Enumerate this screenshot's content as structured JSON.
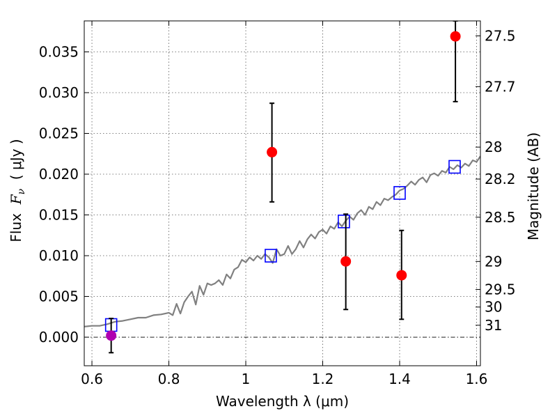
{
  "chart_data": {
    "type": "scatter",
    "xlabel": "Wavelength  λ (μm)",
    "ylabel": "Flux  F_ν  ( μJy )",
    "ylabel_parts": {
      "prefix": "Flux  ",
      "symbol": "F",
      "sub": "ν",
      "suffix": "  ( μJy )"
    },
    "y2label": "Magnitude (AB)",
    "xlim": [
      0.58,
      1.61
    ],
    "ylim": [
      -0.0035,
      0.0388
    ],
    "xticks": [
      0.6,
      0.8,
      1.0,
      1.2,
      1.4,
      1.6
    ],
    "xtick_labels": [
      "0.6",
      "0.8",
      "1",
      "1.2",
      "1.4",
      "1.6"
    ],
    "yticks": [
      0.0,
      0.005,
      0.01,
      0.015,
      0.02,
      0.025,
      0.03,
      0.035
    ],
    "ytick_labels": [
      "0.000",
      "0.005",
      "0.010",
      "0.015",
      "0.020",
      "0.025",
      "0.030",
      "0.035"
    ],
    "y2ticks": [
      {
        "label": "27.5",
        "flux": 0.03696
      },
      {
        "label": "27.7",
        "flux": 0.03074
      },
      {
        "label": "28",
        "flux": 0.02332
      },
      {
        "label": "28.2",
        "flux": 0.0194
      },
      {
        "label": "28.5",
        "flux": 0.01472
      },
      {
        "label": "29",
        "flux": 0.00929
      },
      {
        "label": "29.5",
        "flux": 0.00586
      },
      {
        "label": "30",
        "flux": 0.0037
      },
      {
        "label": "31",
        "flux": 0.00147
      }
    ],
    "grid": true,
    "zero_line": true,
    "series": [
      {
        "type": "line",
        "color": "#808080",
        "x": [
          0.58,
          0.6,
          0.62,
          0.64,
          0.66,
          0.68,
          0.7,
          0.72,
          0.74,
          0.76,
          0.78,
          0.8,
          0.81,
          0.82,
          0.83,
          0.84,
          0.85,
          0.86,
          0.87,
          0.88,
          0.89,
          0.9,
          0.91,
          0.92,
          0.93,
          0.94,
          0.95,
          0.96,
          0.97,
          0.98,
          0.99,
          1.0,
          1.01,
          1.02,
          1.03,
          1.04,
          1.05,
          1.06,
          1.07,
          1.08,
          1.09,
          1.1,
          1.11,
          1.12,
          1.13,
          1.14,
          1.15,
          1.16,
          1.17,
          1.18,
          1.19,
          1.2,
          1.21,
          1.22,
          1.23,
          1.24,
          1.25,
          1.26,
          1.27,
          1.28,
          1.29,
          1.3,
          1.31,
          1.32,
          1.33,
          1.34,
          1.35,
          1.36,
          1.37,
          1.38,
          1.39,
          1.4,
          1.41,
          1.42,
          1.43,
          1.44,
          1.45,
          1.46,
          1.47,
          1.48,
          1.49,
          1.5,
          1.51,
          1.52,
          1.53,
          1.54,
          1.55,
          1.56,
          1.57,
          1.58,
          1.59,
          1.6,
          1.61
        ],
        "y": [
          0.0013,
          0.0014,
          0.0014,
          0.0016,
          0.0019,
          0.002,
          0.0022,
          0.0024,
          0.0024,
          0.0027,
          0.0028,
          0.003,
          0.0027,
          0.0041,
          0.0029,
          0.0043,
          0.005,
          0.0056,
          0.004,
          0.0063,
          0.0052,
          0.0066,
          0.0064,
          0.0066,
          0.007,
          0.0064,
          0.0077,
          0.0072,
          0.0083,
          0.0086,
          0.0095,
          0.0092,
          0.0098,
          0.0094,
          0.01,
          0.0096,
          0.0102,
          0.0098,
          0.0091,
          0.0108,
          0.01,
          0.0102,
          0.0112,
          0.0102,
          0.0108,
          0.0118,
          0.011,
          0.012,
          0.0126,
          0.0121,
          0.0129,
          0.0132,
          0.0127,
          0.0136,
          0.0133,
          0.0141,
          0.0136,
          0.0143,
          0.0148,
          0.0144,
          0.0152,
          0.0156,
          0.015,
          0.016,
          0.0157,
          0.0166,
          0.0162,
          0.017,
          0.0168,
          0.0172,
          0.0175,
          0.018,
          0.0182,
          0.0186,
          0.0191,
          0.0187,
          0.0193,
          0.0196,
          0.019,
          0.0199,
          0.0201,
          0.0198,
          0.0204,
          0.0202,
          0.0209,
          0.0206,
          0.0211,
          0.0208,
          0.0213,
          0.021,
          0.0217,
          0.0215,
          0.0222
        ]
      },
      {
        "type": "scatter",
        "marker": "square-open",
        "color": "#0000ff",
        "x": [
          0.65,
          1.065,
          1.255,
          1.4,
          1.543
        ],
        "y": [
          0.0015,
          0.01,
          0.0142,
          0.0177,
          0.0209
        ]
      },
      {
        "type": "errorbar",
        "marker": "circle",
        "color": "#ff0000",
        "x": [
          1.068,
          1.26,
          1.405,
          1.545
        ],
        "y": [
          0.0227,
          0.0093,
          0.0076,
          0.0369
        ],
        "yerr_low": [
          0.0061,
          0.0059,
          0.0054,
          0.008
        ],
        "yerr_high": [
          0.006,
          0.0058,
          0.0055,
          0.0019
        ]
      },
      {
        "type": "errorbar",
        "marker": "circle",
        "color": "#b000b0",
        "x": [
          0.65
        ],
        "y": [
          0.0002
        ],
        "yerr_low": [
          0.0021
        ],
        "yerr_high": [
          0.0021
        ]
      }
    ]
  }
}
